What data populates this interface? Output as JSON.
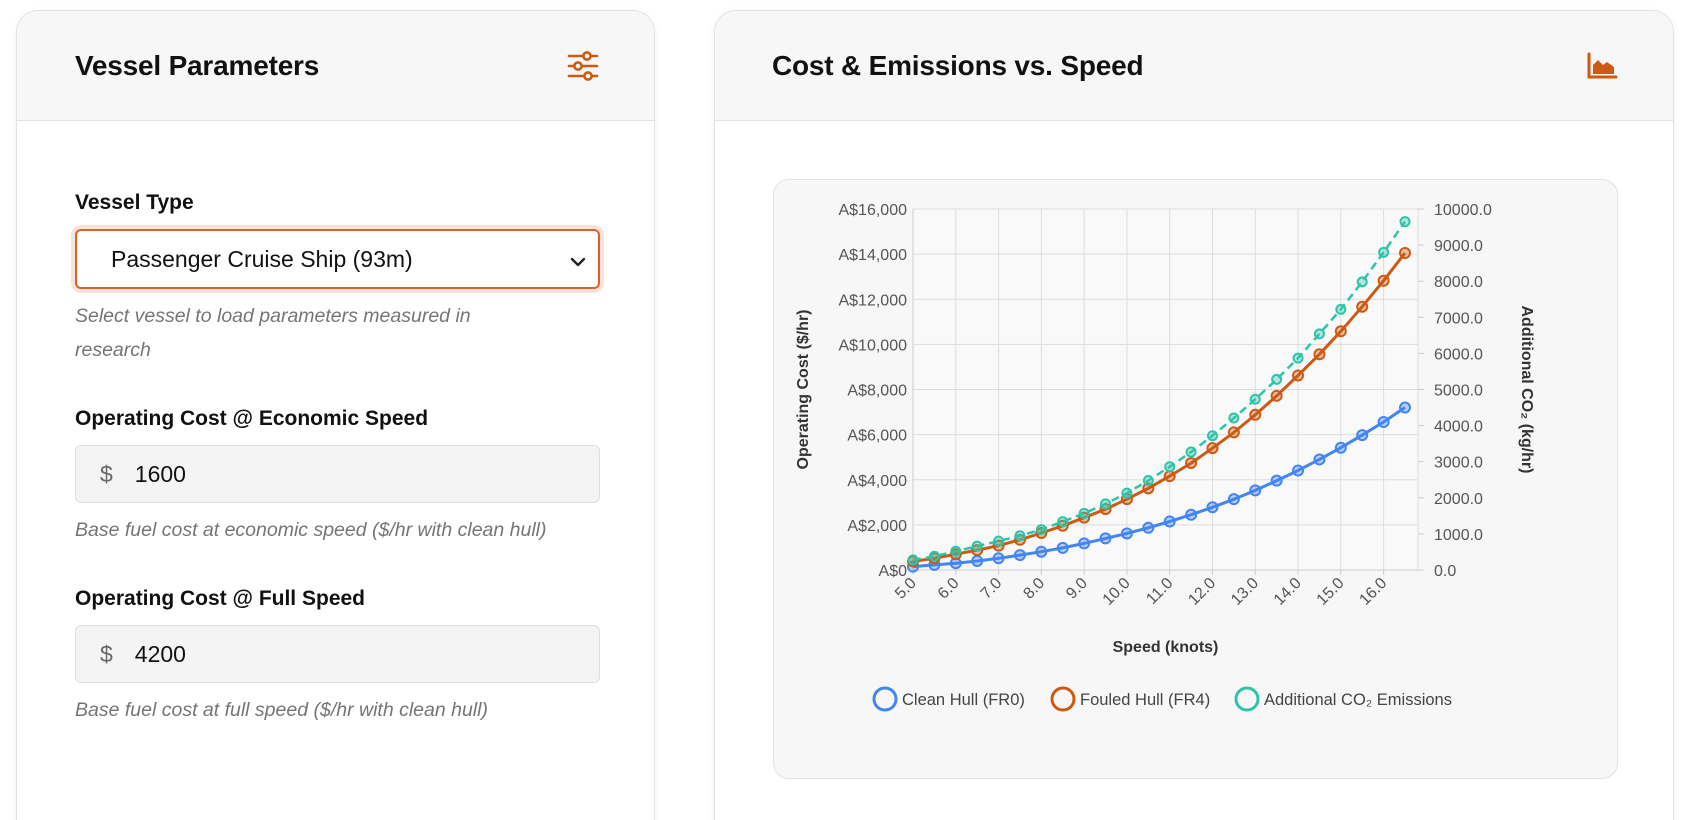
{
  "left_panel": {
    "title": "Vessel Parameters",
    "icon": "sliders-icon",
    "vessel_type": {
      "label": "Vessel Type",
      "selected": "Passenger Cruise Ship (93m)",
      "hint": "Select vessel to load parameters measured in research"
    },
    "cost_economic": {
      "label": "Operating Cost @ Economic Speed",
      "prefix": "$",
      "value": "1600",
      "hint": "Base fuel cost at economic speed ($/hr with clean hull)"
    },
    "cost_full": {
      "label": "Operating Cost @ Full Speed",
      "prefix": "$",
      "value": "4200",
      "hint": "Base fuel cost at full speed ($/hr with clean hull)"
    }
  },
  "right_panel": {
    "title": "Cost & Emissions vs. Speed",
    "icon": "area-chart-icon"
  },
  "colors": {
    "accent": "#cc5a12",
    "clean": "#4285f4",
    "fouled": "#cc5a12",
    "co2": "#2ec4a9"
  },
  "chart_data": {
    "type": "line",
    "xlabel": "Speed (knots)",
    "ylabel": "Operating Cost ($/hr)",
    "y2label": "Additional CO₂ (kg/hr)",
    "x": [
      5.0,
      5.5,
      6.0,
      6.5,
      7.0,
      7.5,
      8.0,
      8.5,
      9.0,
      9.5,
      10.0,
      10.5,
      11.0,
      11.5,
      12.0,
      12.5,
      13.0,
      13.5,
      14.0,
      14.5,
      15.0,
      15.5,
      16.0,
      16.5
    ],
    "x_tick_labels": [
      "5.0",
      "6.0",
      "7.0",
      "8.0",
      "9.0",
      "10.0",
      "11.0",
      "12.0",
      "13.0",
      "14.0",
      "15.0",
      "16.0"
    ],
    "ylim": [
      0,
      16000
    ],
    "y_tick_labels": [
      "A$0",
      "A$2,000",
      "A$4,000",
      "A$6,000",
      "A$8,000",
      "A$10,000",
      "A$12,000",
      "A$14,000",
      "A$16,000"
    ],
    "y2lim": [
      0,
      10000
    ],
    "y2_tick_labels": [
      "0.0",
      "1000.0",
      "2000.0",
      "3000.0",
      "4000.0",
      "5000.0",
      "6000.0",
      "7000.0",
      "8000.0",
      "9000.0",
      "10000.0"
    ],
    "grid": true,
    "legend_position": "bottom",
    "series": [
      {
        "name": "Clean Hull (FR0)",
        "axis": "left",
        "color": "#4285f4",
        "dashed": false,
        "values": [
          150,
          225,
          300,
          400,
          520,
          660,
          810,
          980,
          1180,
          1400,
          1620,
          1870,
          2150,
          2450,
          2780,
          3140,
          3530,
          3960,
          4410,
          4900,
          5420,
          5980,
          6560,
          7200
        ]
      },
      {
        "name": "Fouled Hull (FR4)",
        "axis": "left",
        "color": "#cc5a12",
        "dashed": false,
        "values": [
          380,
          520,
          700,
          880,
          1080,
          1340,
          1640,
          1960,
          2320,
          2700,
          3140,
          3620,
          4160,
          4740,
          5400,
          6100,
          6880,
          7720,
          8620,
          9560,
          10580,
          11670,
          12820,
          14050
        ]
      },
      {
        "name": "Additional CO₂ Emissions",
        "axis": "right",
        "color": "#2ec4a9",
        "dashed": true,
        "values": [
          280,
          380,
          520,
          660,
          800,
          950,
          1120,
          1340,
          1570,
          1830,
          2130,
          2480,
          2860,
          3270,
          3720,
          4210,
          4730,
          5280,
          5870,
          6540,
          7220,
          7980,
          8800,
          9650
        ]
      }
    ]
  }
}
